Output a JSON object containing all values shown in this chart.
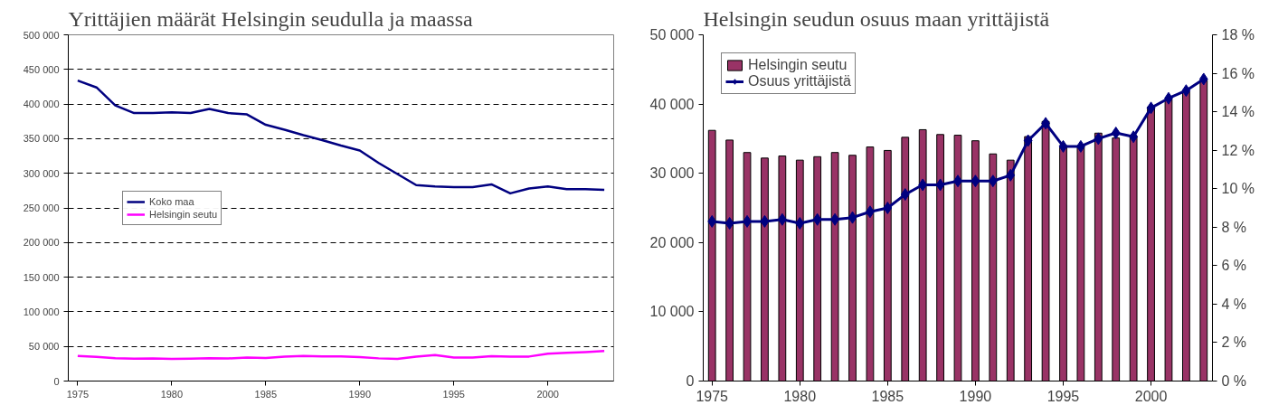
{
  "chart_data": [
    {
      "type": "line",
      "title": "Yrittäjien määrät Helsingin seudulla ja maassa",
      "x": [
        1975,
        1976,
        1977,
        1978,
        1979,
        1980,
        1981,
        1982,
        1983,
        1984,
        1985,
        1986,
        1987,
        1988,
        1989,
        1990,
        1991,
        1992,
        1993,
        1994,
        1995,
        1996,
        1997,
        1998,
        1999,
        2000,
        2001,
        2002,
        2003
      ],
      "series": [
        {
          "name": "Koko maa",
          "color": "#000080",
          "values": [
            434000,
            424000,
            398000,
            387000,
            387000,
            388000,
            387000,
            393000,
            387000,
            385000,
            370000,
            363000,
            355000,
            348000,
            340000,
            333000,
            315000,
            299000,
            283000,
            281000,
            280000,
            280000,
            284000,
            271000,
            278000,
            281000,
            277000,
            277000,
            276000
          ]
        },
        {
          "name": "Helsingin seutu",
          "color": "#ff00ff",
          "values": [
            36200,
            34800,
            33000,
            32200,
            32500,
            31900,
            32400,
            33000,
            32600,
            33800,
            33300,
            35200,
            36300,
            35600,
            35500,
            34700,
            32800,
            31900,
            35300,
            37500,
            34000,
            33900,
            35800,
            35100,
            35400,
            39600,
            40700,
            41800,
            43500
          ]
        }
      ],
      "xlim": [
        1974.5,
        2003.5
      ],
      "xticks": [
        1975,
        1980,
        1985,
        1990,
        1995,
        2000
      ],
      "ylim": [
        0,
        500000
      ],
      "yticks": [
        {
          "value": 0,
          "label": "0"
        },
        {
          "value": 50000,
          "label": "50 000"
        },
        {
          "value": 100000,
          "label": "100 000"
        },
        {
          "value": 150000,
          "label": "150 000"
        },
        {
          "value": 200000,
          "label": "200 000"
        },
        {
          "value": 250000,
          "label": "250 000"
        },
        {
          "value": 300000,
          "label": "300 000"
        },
        {
          "value": 350000,
          "label": "350 000"
        },
        {
          "value": 400000,
          "label": "400 000"
        },
        {
          "value": 450000,
          "label": "450 000"
        },
        {
          "value": 500000,
          "label": "500 000"
        }
      ],
      "grid": "y",
      "legend": "left",
      "line_style": "solid"
    },
    {
      "type": "bar",
      "title": "Helsingin seudun osuus maan yrittäjistä",
      "x": [
        1975,
        1976,
        1977,
        1978,
        1979,
        1980,
        1981,
        1982,
        1983,
        1984,
        1985,
        1986,
        1987,
        1988,
        1989,
        1990,
        1991,
        1992,
        1993,
        1994,
        1995,
        1996,
        1997,
        1998,
        1999,
        2000,
        2001,
        2002,
        2003
      ],
      "series": [
        {
          "name": "Helsingin seutu",
          "color": "#993366",
          "values": [
            36200,
            34800,
            33000,
            32200,
            32500,
            31900,
            32400,
            33000,
            32600,
            33800,
            33300,
            35200,
            36300,
            35600,
            35500,
            34700,
            32800,
            31900,
            35300,
            37500,
            34000,
            33900,
            35800,
            35100,
            35400,
            39600,
            40700,
            41800,
            43500
          ]
        },
        {
          "name": "Osuus yrittäjistä",
          "type": "line",
          "axis": "y2",
          "color": "#000080",
          "marker": "diamond",
          "values": [
            8.3,
            8.2,
            8.3,
            8.3,
            8.4,
            8.2,
            8.4,
            8.4,
            8.5,
            8.8,
            9.0,
            9.7,
            10.2,
            10.2,
            10.4,
            10.4,
            10.4,
            10.7,
            12.5,
            13.4,
            12.2,
            12.2,
            12.6,
            12.9,
            12.7,
            14.2,
            14.7,
            15.1,
            15.7
          ]
        }
      ],
      "xlim": [
        1974.5,
        2003.5
      ],
      "xticks": [
        1975,
        1980,
        1985,
        1990,
        1995,
        2000
      ],
      "ylim": [
        0,
        50000
      ],
      "yticks": [
        {
          "value": 0,
          "label": "0"
        },
        {
          "value": 10000,
          "label": "10 000"
        },
        {
          "value": 20000,
          "label": "20 000"
        },
        {
          "value": 30000,
          "label": "30 000"
        },
        {
          "value": 40000,
          "label": "40 000"
        },
        {
          "value": 50000,
          "label": "50 000"
        }
      ],
      "y2lim": [
        0,
        18
      ],
      "y2ticks": [
        {
          "value": 0,
          "label": "0 %"
        },
        {
          "value": 2,
          "label": "2 %"
        },
        {
          "value": 4,
          "label": "4 %"
        },
        {
          "value": 6,
          "label": "6 %"
        },
        {
          "value": 8,
          "label": "8 %"
        },
        {
          "value": 10,
          "label": "10 %"
        },
        {
          "value": 12,
          "label": "12 %"
        },
        {
          "value": 14,
          "label": "14 %"
        },
        {
          "value": 16,
          "label": "16 %"
        },
        {
          "value": 18,
          "label": "18 %"
        }
      ],
      "grid": false,
      "legend": "top left"
    }
  ]
}
